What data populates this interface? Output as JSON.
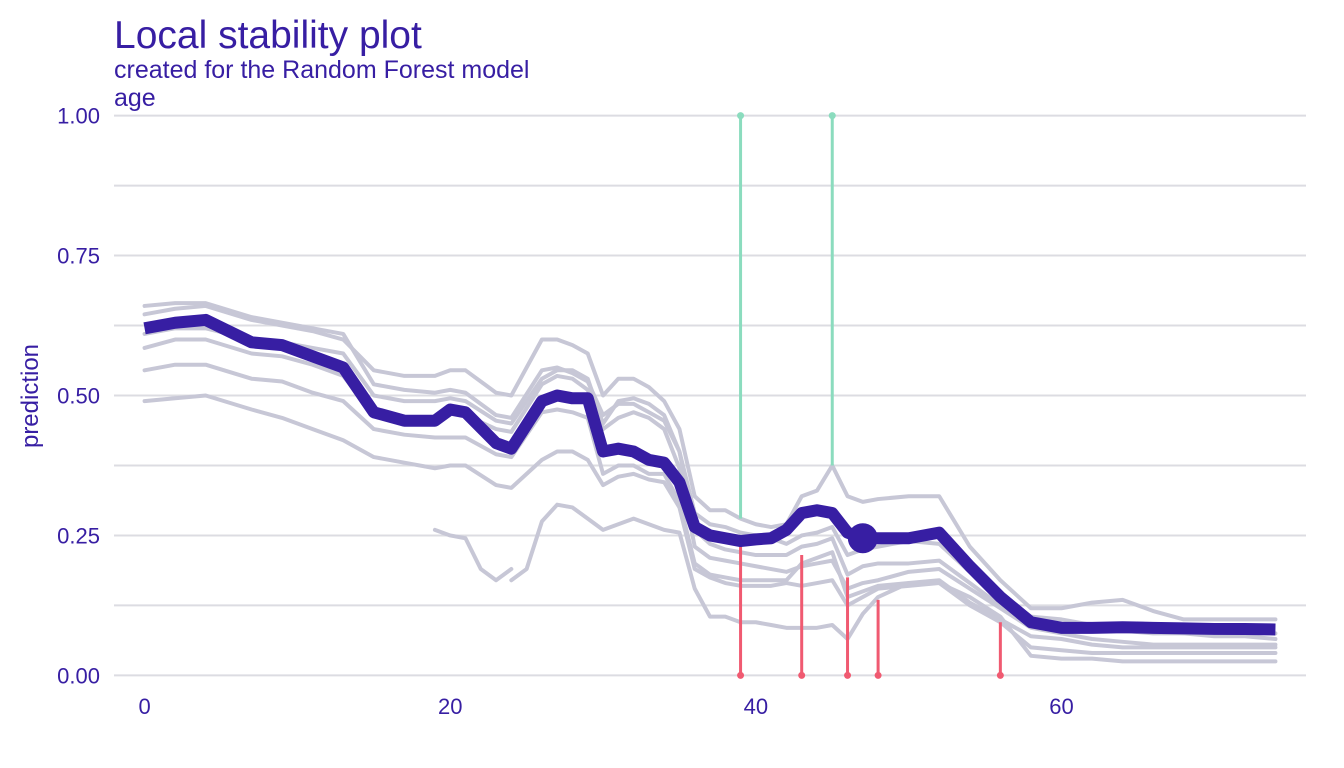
{
  "chart_data": {
    "type": "line",
    "title": "Local stability plot",
    "subtitle": "created for the Random Forest model",
    "facet_label": "age",
    "xlabel": "",
    "ylabel": "prediction",
    "xlim": [
      -2,
      76
    ],
    "ylim": [
      -0.01,
      1.01
    ],
    "x_ticks": [
      0,
      20,
      40,
      60
    ],
    "x_tick_labels": [
      "0",
      "20",
      "40",
      "60"
    ],
    "y_ticks": [
      0,
      0.25,
      0.5,
      0.75,
      1.0
    ],
    "y_tick_labels": [
      "0.00",
      "0.25",
      "0.50",
      "0.75",
      "1.00"
    ],
    "grid": "horizontal",
    "legend": "none",
    "colors": {
      "main_line": "#371ea3",
      "neighbor_lines": "#c7c7d6",
      "positive_residual": "#8bdcbe",
      "negative_residual": "#f05a71",
      "grid": "#dcdce2",
      "text": "#371ea3"
    },
    "main_series": {
      "x": [
        0,
        2,
        4,
        7,
        9,
        11,
        13,
        15,
        17,
        19,
        20,
        21,
        23,
        24,
        26,
        27,
        28,
        29,
        30,
        31,
        32,
        33,
        34,
        35,
        36,
        37,
        38,
        39,
        40,
        41,
        42,
        43,
        44,
        45,
        46,
        47,
        48,
        50,
        52,
        54,
        56,
        58,
        60,
        62,
        64,
        66,
        68,
        70,
        72,
        74
      ],
      "y": [
        0.62,
        0.63,
        0.635,
        0.595,
        0.59,
        0.57,
        0.55,
        0.47,
        0.455,
        0.455,
        0.475,
        0.47,
        0.415,
        0.405,
        0.49,
        0.5,
        0.495,
        0.495,
        0.4,
        0.405,
        0.4,
        0.385,
        0.38,
        0.345,
        0.265,
        0.25,
        0.245,
        0.24,
        0.243,
        0.245,
        0.26,
        0.29,
        0.295,
        0.29,
        0.255,
        0.245,
        0.245,
        0.245,
        0.255,
        0.195,
        0.14,
        0.095,
        0.085,
        0.085,
        0.086,
        0.085,
        0.084,
        0.083,
        0.083,
        0.082
      ]
    },
    "observation_point": {
      "x": 47,
      "y": 0.245
    },
    "neighbor_series": [
      {
        "x": [
          0,
          2,
          4,
          7,
          9,
          11,
          13,
          15,
          17,
          19,
          20,
          21,
          23,
          24,
          26,
          27,
          28,
          29,
          30,
          31,
          32,
          33,
          34,
          35,
          36,
          37,
          38,
          39,
          40,
          41,
          42,
          43,
          44,
          45,
          46,
          47,
          48,
          50,
          52,
          54,
          56,
          58,
          60,
          62,
          64,
          66,
          68,
          70,
          72,
          74
        ],
        "y": [
          0.645,
          0.655,
          0.66,
          0.635,
          0.625,
          0.615,
          0.6,
          0.545,
          0.535,
          0.535,
          0.545,
          0.545,
          0.505,
          0.5,
          0.6,
          0.6,
          0.59,
          0.575,
          0.5,
          0.53,
          0.53,
          0.515,
          0.49,
          0.44,
          0.32,
          0.295,
          0.295,
          0.28,
          0.27,
          0.265,
          0.27,
          0.32,
          0.33,
          0.375,
          0.32,
          0.31,
          0.315,
          0.32,
          0.32,
          0.23,
          0.17,
          0.12,
          0.12,
          0.13,
          0.135,
          0.115,
          0.1,
          0.1,
          0.1,
          0.1
        ]
      },
      {
        "x": [
          0,
          2,
          4,
          7,
          9,
          11,
          13,
          15,
          17,
          19,
          20,
          21,
          23,
          24,
          26,
          27,
          28,
          29,
          30,
          31,
          32,
          33,
          34,
          35,
          36,
          37,
          38,
          39,
          40,
          41,
          42,
          43,
          44,
          45,
          46,
          47,
          48,
          50,
          52,
          54,
          56,
          58,
          60,
          62,
          64,
          66,
          68,
          70,
          72,
          74
        ],
        "y": [
          0.61,
          0.62,
          0.62,
          0.6,
          0.595,
          0.585,
          0.575,
          0.5,
          0.49,
          0.49,
          0.495,
          0.49,
          0.455,
          0.45,
          0.53,
          0.545,
          0.545,
          0.53,
          0.45,
          0.49,
          0.495,
          0.485,
          0.465,
          0.4,
          0.29,
          0.27,
          0.265,
          0.255,
          0.25,
          0.245,
          0.235,
          0.25,
          0.255,
          0.265,
          0.215,
          0.225,
          0.23,
          0.24,
          0.235,
          0.185,
          0.145,
          0.105,
          0.1,
          0.09,
          0.09,
          0.08,
          0.075,
          0.07,
          0.07,
          0.065
        ]
      },
      {
        "x": [
          0,
          2,
          4,
          7,
          9,
          11,
          13,
          15,
          17,
          19,
          20,
          21,
          23,
          24,
          26,
          27,
          28,
          29,
          30,
          31,
          32,
          33,
          34,
          35,
          36,
          37,
          38,
          39,
          40,
          41,
          42,
          43,
          44,
          45,
          46,
          47,
          48,
          50,
          52,
          54,
          56,
          58,
          60,
          62,
          64,
          66,
          68,
          70,
          72,
          74
        ],
        "y": [
          0.585,
          0.6,
          0.6,
          0.575,
          0.57,
          0.555,
          0.535,
          0.465,
          0.46,
          0.46,
          0.47,
          0.465,
          0.44,
          0.435,
          0.52,
          0.535,
          0.53,
          0.51,
          0.44,
          0.46,
          0.47,
          0.46,
          0.44,
          0.37,
          0.23,
          0.21,
          0.205,
          0.2,
          0.195,
          0.19,
          0.185,
          0.195,
          0.2,
          0.205,
          0.155,
          0.165,
          0.17,
          0.185,
          0.19,
          0.155,
          0.12,
          0.085,
          0.075,
          0.065,
          0.06,
          0.055,
          0.055,
          0.055,
          0.055,
          0.055
        ]
      },
      {
        "x": [
          0,
          2,
          4,
          7,
          9,
          11,
          13,
          15,
          17,
          19,
          20,
          21,
          23,
          24,
          26,
          27,
          28,
          29,
          30,
          31,
          32,
          33,
          34,
          35,
          36,
          37,
          38,
          39,
          40,
          41,
          42,
          43,
          44,
          45,
          46,
          47,
          48,
          50,
          52,
          54,
          56,
          58,
          60,
          62,
          64,
          66,
          68,
          70,
          72,
          74
        ],
        "y": [
          0.545,
          0.555,
          0.555,
          0.53,
          0.525,
          0.505,
          0.49,
          0.44,
          0.43,
          0.425,
          0.425,
          0.425,
          0.395,
          0.39,
          0.47,
          0.475,
          0.47,
          0.46,
          0.36,
          0.375,
          0.375,
          0.36,
          0.36,
          0.31,
          0.2,
          0.18,
          0.175,
          0.17,
          0.17,
          0.17,
          0.17,
          0.2,
          0.21,
          0.22,
          0.14,
          0.15,
          0.16,
          0.165,
          0.17,
          0.13,
          0.1,
          0.07,
          0.065,
          0.055,
          0.05,
          0.05,
          0.05,
          0.05,
          0.05,
          0.05
        ]
      },
      {
        "x": [
          0,
          2,
          4,
          7,
          9,
          11,
          13,
          15,
          17,
          19,
          20,
          21,
          23,
          24,
          26,
          27,
          28,
          29,
          30,
          31,
          32,
          33,
          34,
          35,
          36,
          37,
          38,
          39,
          40,
          41,
          42,
          43,
          44,
          45,
          46,
          47,
          48,
          50,
          52,
          54,
          56,
          58,
          60,
          62,
          64,
          66,
          68,
          70,
          72,
          74
        ],
        "y": [
          0.49,
          0.495,
          0.5,
          0.475,
          0.46,
          0.44,
          0.42,
          0.39,
          0.38,
          0.37,
          0.375,
          0.375,
          0.34,
          0.335,
          0.385,
          0.4,
          0.4,
          0.385,
          0.34,
          0.355,
          0.36,
          0.35,
          0.345,
          0.3,
          0.19,
          0.175,
          0.165,
          0.16,
          0.16,
          0.16,
          0.165,
          0.16,
          0.165,
          0.17,
          0.125,
          0.14,
          0.155,
          0.16,
          0.165,
          0.125,
          0.095,
          0.05,
          0.045,
          0.04,
          0.04,
          0.04,
          0.04,
          0.04,
          0.04,
          0.04
        ]
      },
      {
        "x": [
          0,
          2,
          4,
          7,
          9,
          11,
          13,
          15,
          17,
          19,
          20,
          21,
          23,
          24,
          26,
          27,
          28,
          29,
          30,
          31,
          32,
          33,
          34,
          35,
          36,
          37,
          38,
          39,
          40,
          41,
          42,
          43,
          44,
          45,
          46,
          47,
          48,
          50,
          52,
          54,
          56,
          58,
          60,
          62,
          64,
          66,
          68,
          70,
          72,
          74
        ],
        "y": [
          0.66,
          0.665,
          0.665,
          0.64,
          0.63,
          0.62,
          0.61,
          0.52,
          0.51,
          0.505,
          0.51,
          0.505,
          0.465,
          0.46,
          0.545,
          0.55,
          0.54,
          0.525,
          0.465,
          0.485,
          0.485,
          0.47,
          0.455,
          0.4,
          0.26,
          0.235,
          0.225,
          0.22,
          0.215,
          0.215,
          0.215,
          0.23,
          0.235,
          0.245,
          0.18,
          0.195,
          0.2,
          0.2,
          0.205,
          0.165,
          0.125,
          0.095,
          0.09,
          0.085,
          0.08,
          0.075,
          0.075,
          0.075,
          0.075,
          0.075
        ]
      },
      {
        "x": [
          24,
          25,
          26,
          27,
          28,
          29,
          30,
          31,
          32,
          33,
          34,
          35,
          36,
          37,
          38,
          39,
          40,
          41,
          42,
          43,
          44,
          45,
          46,
          47,
          48,
          50,
          52,
          54,
          56,
          58,
          60,
          62,
          64,
          66,
          68,
          70,
          72,
          74
        ],
        "y": [
          0.17,
          0.19,
          0.275,
          0.305,
          0.3,
          0.28,
          0.26,
          0.27,
          0.28,
          0.27,
          0.26,
          0.255,
          0.155,
          0.105,
          0.105,
          0.095,
          0.095,
          0.09,
          0.085,
          0.085,
          0.085,
          0.09,
          0.065,
          0.11,
          0.14,
          0.165,
          0.165,
          0.14,
          0.105,
          0.035,
          0.03,
          0.03,
          0.025,
          0.025,
          0.025,
          0.025,
          0.025,
          0.025
        ]
      },
      {
        "x": [
          19,
          20,
          21,
          22,
          23,
          24
        ],
        "y": [
          0.26,
          0.25,
          0.245,
          0.19,
          0.17,
          0.19
        ]
      }
    ],
    "residuals": [
      {
        "x": 39,
        "from": 0.28,
        "to": 1.0,
        "sign": "positive"
      },
      {
        "x": 45,
        "from": 0.375,
        "to": 1.0,
        "sign": "positive"
      },
      {
        "x": 39,
        "from": 0.25,
        "to": 0.0,
        "sign": "negative"
      },
      {
        "x": 43,
        "from": 0.215,
        "to": 0.0,
        "sign": "negative"
      },
      {
        "x": 46,
        "from": 0.175,
        "to": 0.0,
        "sign": "negative"
      },
      {
        "x": 48,
        "from": 0.135,
        "to": 0.0,
        "sign": "negative"
      },
      {
        "x": 56,
        "from": 0.095,
        "to": 0.0,
        "sign": "negative"
      }
    ]
  }
}
